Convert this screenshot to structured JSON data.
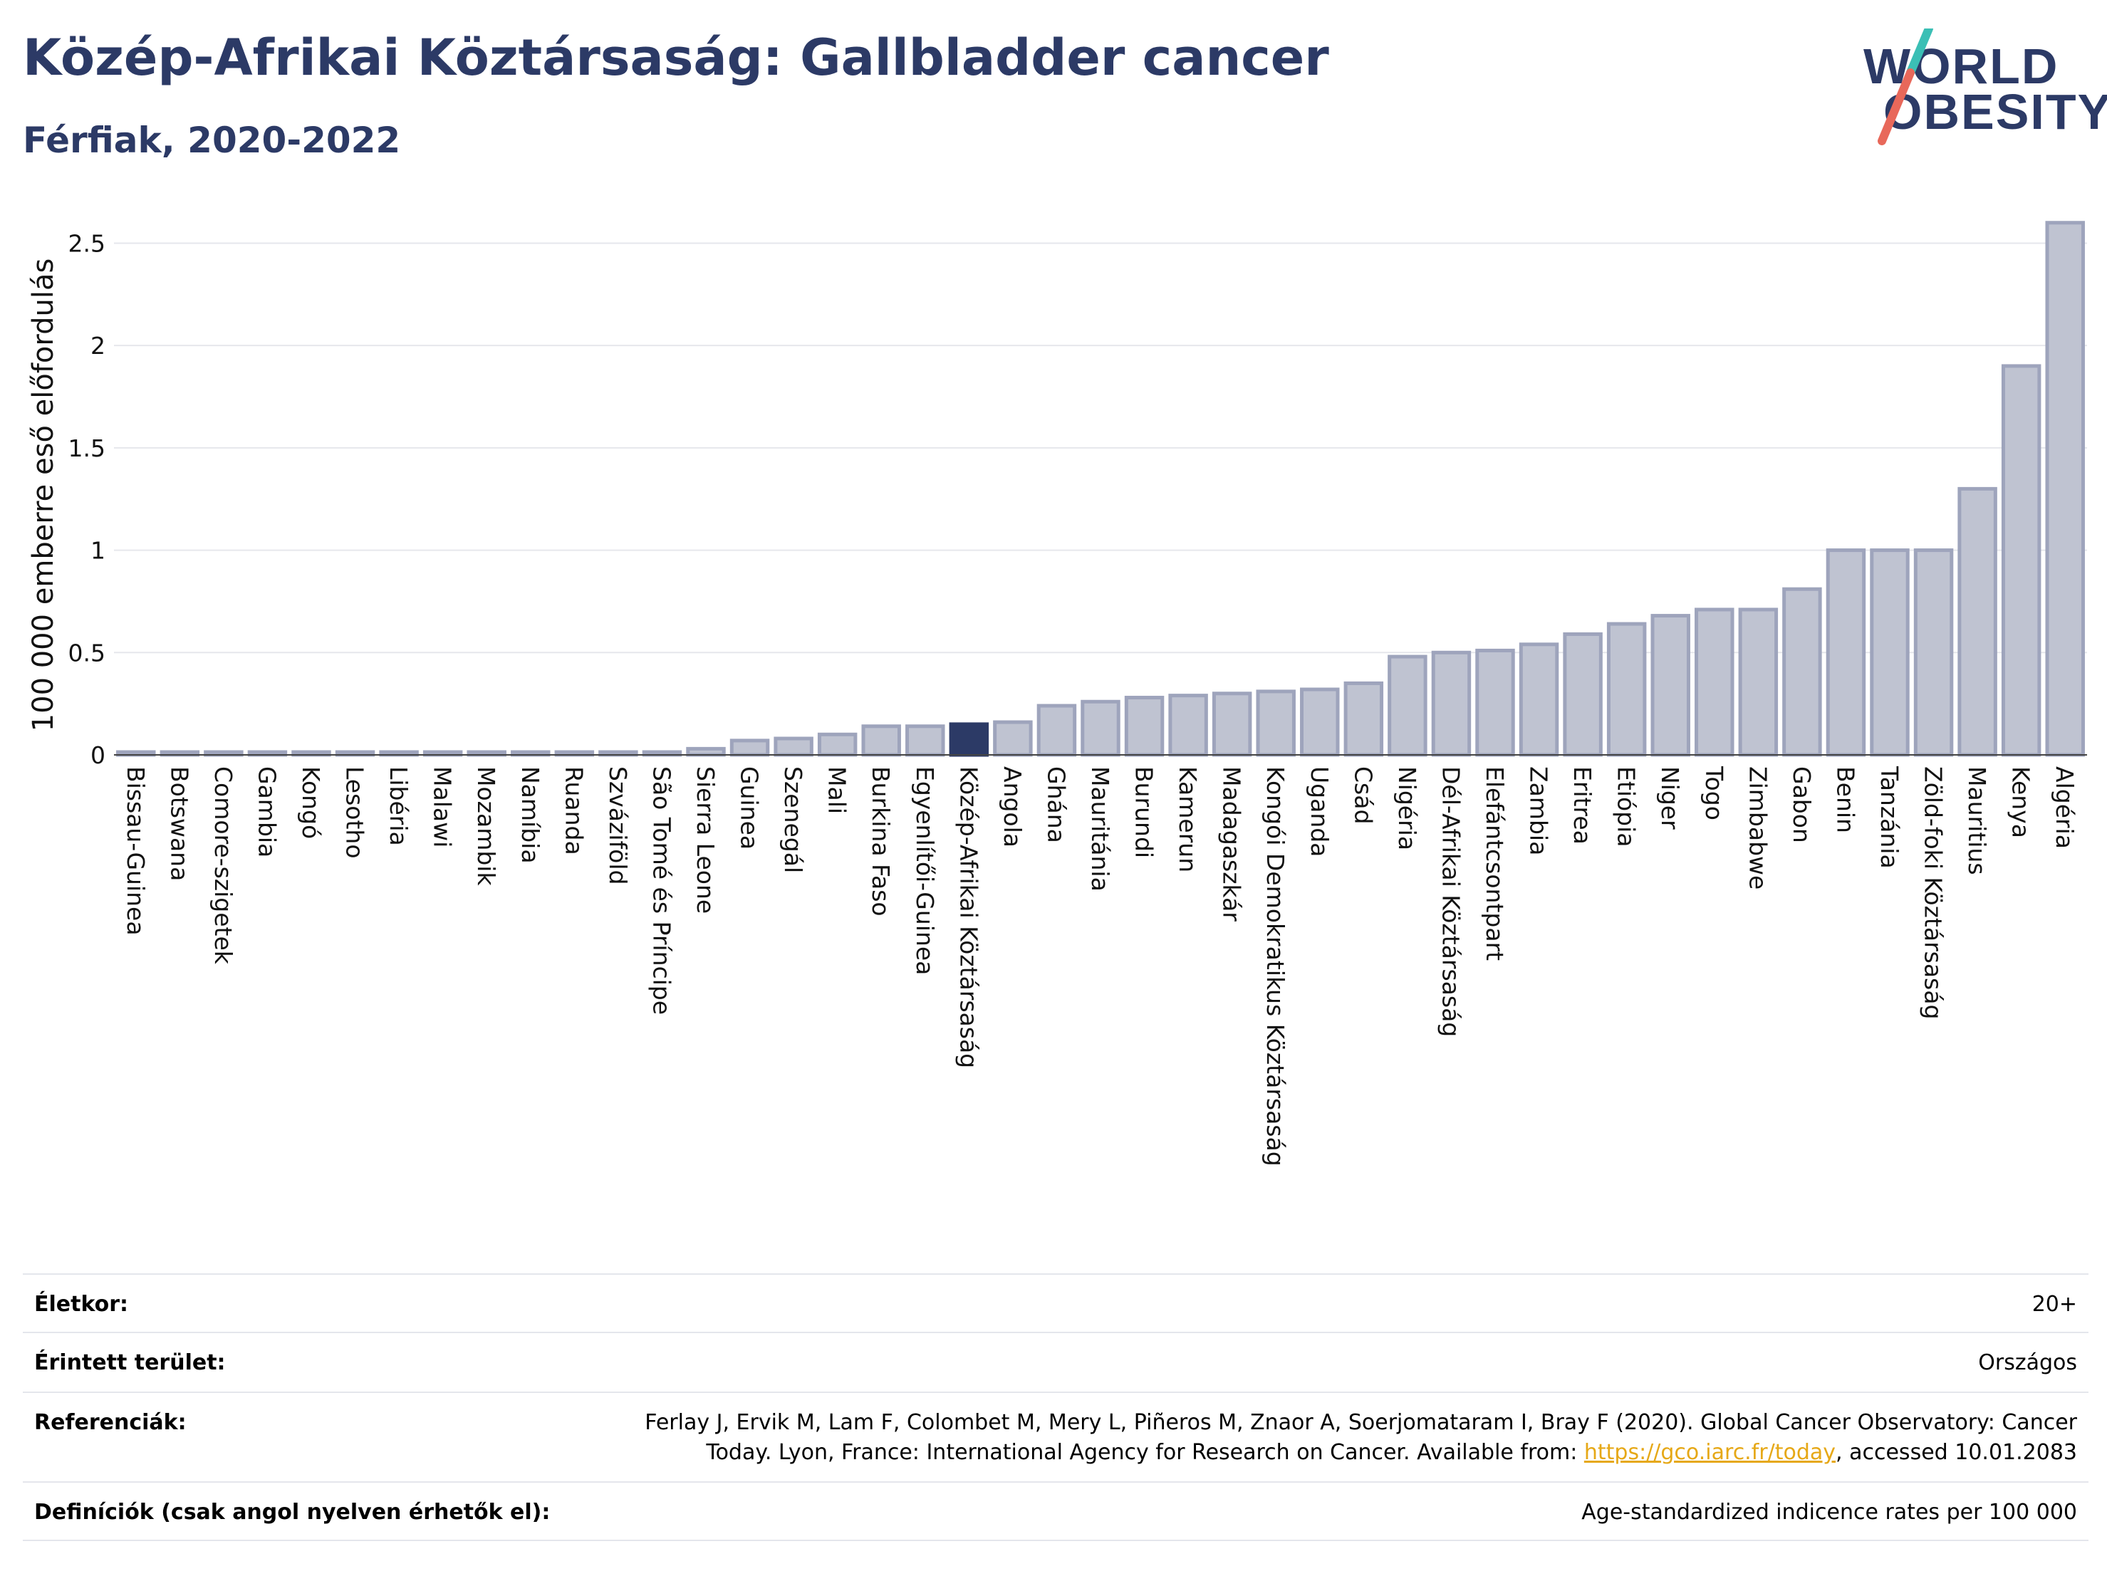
{
  "header": {
    "title": "Közép-Afrikai Köztársaság: Gallbladder cancer",
    "subtitle": "Férfiak, 2020-2022"
  },
  "logo": {
    "line1": "WORLD",
    "line2": "OBESITY",
    "slash_color_top": "#3bbfb5",
    "slash_color_bottom": "#e8685a",
    "text_color": "#2c3a66"
  },
  "chart_data": {
    "type": "bar",
    "ylabel": "100 000 emberre eső előfordulás",
    "ylim": [
      0,
      2.7
    ],
    "yticks": [
      0,
      0.5,
      1,
      1.5,
      2,
      2.5
    ],
    "ytick_labels": [
      "0",
      "0.5",
      "1",
      "1.5",
      "2",
      "2.5"
    ],
    "grid": true,
    "highlight": "Közép-Afrikai Köztársaság",
    "bar_color": "#bfc3d1",
    "bar_edge_color": "#9ea4bc",
    "highlight_color": "#2c3a66",
    "categories": [
      "Bissau-Guinea",
      "Botswana",
      "Comore-szigetek",
      "Gambia",
      "Kongó",
      "Lesotho",
      "Libéria",
      "Malawi",
      "Mozambik",
      "Namíbia",
      "Ruanda",
      "Szváziföld",
      "São Tomé és Príncipe",
      "Sierra Leone",
      "Guinea",
      "Szenegál",
      "Mali",
      "Burkina Faso",
      "Egyenlítői-Guinea",
      "Közép-Afrikai Köztársaság",
      "Angola",
      "Ghána",
      "Mauritánia",
      "Burundi",
      "Kamerun",
      "Madagaszkár",
      "Kongói Demokratikus Köztársaság",
      "Uganda",
      "Csád",
      "Nigéria",
      "Dél-Afrikai Köztársaság",
      "Elefántcsontpart",
      "Zambia",
      "Eritrea",
      "Etiópia",
      "Niger",
      "Togo",
      "Zimbabwe",
      "Gabon",
      "Benin",
      "Tanzánia",
      "Zöld-foki Köztársaság",
      "Mauritius",
      "Kenya",
      "Algéria"
    ],
    "values": [
      0.01,
      0.01,
      0.01,
      0.01,
      0.01,
      0.01,
      0.01,
      0.01,
      0.01,
      0.01,
      0.01,
      0.01,
      0.01,
      0.03,
      0.07,
      0.08,
      0.1,
      0.14,
      0.14,
      0.15,
      0.16,
      0.24,
      0.26,
      0.28,
      0.29,
      0.3,
      0.31,
      0.32,
      0.35,
      0.48,
      0.5,
      0.51,
      0.54,
      0.59,
      0.64,
      0.68,
      0.71,
      0.71,
      0.81,
      1.0,
      1.0,
      1.0,
      1.3,
      1.9,
      2.6
    ]
  },
  "info": {
    "age_label": "Életkor:",
    "age_value": "20+",
    "area_label": "Érintett terület:",
    "area_value": "Országos",
    "ref_label": "Referenciák:",
    "ref_line1": "Ferlay J, Ervik M, Lam F, Colombet M, Mery L, Piñeros M, Znaor A, Soerjomataram I, Bray F (2020). Global Cancer Observatory: Cancer",
    "ref_line2_pre": "Today. Lyon, France: International Agency for Research on Cancer. Available from: ",
    "ref_link": "https://gco.iarc.fr/today",
    "ref_line2_post": ", accessed 10.01.2083",
    "def_label": "Definíciók (csak angol nyelven érhetők el):",
    "def_value": "Age-standardized indicence rates per 100 000"
  }
}
